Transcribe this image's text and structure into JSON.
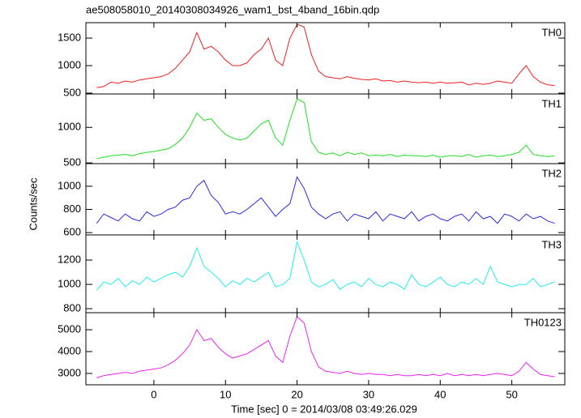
{
  "chart_data": {
    "type": "line",
    "title": "ae508058010_20140308034926_wam1_bst_4band_16bin.qdp",
    "xlabel": "Time [sec] 0 = 2014/03/08 03:49:26.029",
    "ylabel": "Counts/sec",
    "x": [
      -8,
      -7,
      -6,
      -5,
      -4,
      -3,
      -2,
      -1,
      0,
      1,
      2,
      3,
      4,
      5,
      6,
      7,
      8,
      9,
      10,
      11,
      12,
      13,
      14,
      15,
      16,
      17,
      18,
      19,
      20,
      21,
      22,
      23,
      24,
      25,
      26,
      27,
      28,
      29,
      30,
      31,
      32,
      33,
      34,
      35,
      36,
      37,
      38,
      39,
      40,
      41,
      42,
      43,
      44,
      45,
      46,
      47,
      48,
      49,
      50,
      51,
      52,
      53,
      54,
      55,
      56
    ],
    "xlim": [
      -9.5,
      57.4
    ],
    "xticks": [
      0,
      10,
      20,
      30,
      40,
      50
    ],
    "series": [
      {
        "name": "TH0",
        "color": "#ee2020",
        "ylim": [
          485,
          1780
        ],
        "yticks": [
          500,
          1000,
          1500
        ],
        "values": [
          600,
          620,
          700,
          680,
          720,
          700,
          740,
          760,
          780,
          800,
          850,
          950,
          1100,
          1250,
          1600,
          1300,
          1350,
          1250,
          1100,
          1000,
          1000,
          1050,
          1200,
          1300,
          1500,
          1100,
          1000,
          1500,
          1750,
          1700,
          1200,
          900,
          800,
          780,
          760,
          800,
          770,
          750,
          740,
          760,
          720,
          730,
          700,
          720,
          700,
          690,
          700,
          680,
          700,
          680,
          690,
          700,
          650,
          680,
          660,
          680,
          720,
          700,
          680,
          850,
          1000,
          800,
          700,
          650,
          640
        ]
      },
      {
        "name": "TH1",
        "color": "#22dd22",
        "ylim": [
          490,
          1470
        ],
        "yticks": [
          500,
          1000
        ],
        "values": [
          560,
          580,
          600,
          610,
          620,
          600,
          630,
          650,
          660,
          680,
          700,
          760,
          850,
          1000,
          1200,
          1100,
          1120,
          1000,
          900,
          850,
          820,
          850,
          950,
          1050,
          1100,
          850,
          750,
          1100,
          1400,
          1350,
          800,
          650,
          620,
          640,
          600,
          650,
          620,
          640,
          600,
          610,
          600,
          620,
          590,
          610,
          600,
          600,
          590,
          610,
          580,
          600,
          600,
          590,
          620,
          580,
          600,
          610,
          590,
          600,
          620,
          650,
          750,
          620,
          600,
          590,
          600
        ]
      },
      {
        "name": "TH2",
        "color": "#2a2add",
        "ylim": [
          580,
          1195
        ],
        "yticks": [
          600,
          800,
          1000
        ],
        "values": [
          680,
          760,
          730,
          700,
          760,
          720,
          700,
          780,
          740,
          760,
          800,
          820,
          880,
          900,
          1000,
          1050,
          920,
          860,
          760,
          780,
          760,
          800,
          850,
          900,
          820,
          740,
          800,
          850,
          1080,
          980,
          820,
          760,
          720,
          760,
          780,
          700,
          760,
          740,
          720,
          780,
          700,
          760,
          740,
          720,
          780,
          700,
          740,
          760,
          720,
          700,
          740,
          760,
          700,
          780,
          720,
          740,
          680,
          760,
          740,
          700,
          760,
          720,
          740,
          700,
          680
        ]
      },
      {
        "name": "TH3",
        "color": "#22eeee",
        "ylim": [
          767,
          1407
        ],
        "yticks": [
          800,
          1000,
          1200
        ],
        "values": [
          950,
          1020,
          1000,
          1050,
          980,
          1030,
          1000,
          1060,
          1020,
          1050,
          1080,
          1100,
          1060,
          1150,
          1300,
          1150,
          1100,
          1050,
          980,
          1030,
          1000,
          1050,
          1020,
          1060,
          1100,
          980,
          1000,
          1050,
          1350,
          1200,
          1020,
          980,
          1000,
          1040,
          960,
          1000,
          1020,
          980,
          1050,
          1000,
          980,
          1020,
          1000,
          960,
          1080,
          1000,
          980,
          1020,
          1060,
          1000,
          980,
          1020,
          1000,
          1050,
          1000,
          1150,
          1020,
          1000,
          980,
          1000,
          1000,
          1050,
          980,
          1000,
          1020
        ]
      },
      {
        "name": "TH0123",
        "color": "#ee22ee",
        "ylim": [
          2480,
          5780
        ],
        "yticks": [
          3000,
          4000,
          5000
        ],
        "values": [
          2800,
          2900,
          2950,
          3000,
          3050,
          3000,
          3100,
          3150,
          3200,
          3250,
          3400,
          3600,
          3900,
          4300,
          5000,
          4500,
          4600,
          4200,
          3900,
          3700,
          3800,
          3900,
          4100,
          4300,
          4500,
          3800,
          3500,
          4700,
          5600,
          5300,
          4000,
          3300,
          3100,
          3050,
          3000,
          3100,
          3000,
          2950,
          3000,
          2950,
          2950,
          2900,
          2950,
          2900,
          2900,
          2950,
          2900,
          2950,
          2900,
          3000,
          2900,
          2950,
          2900,
          2950,
          2900,
          2950,
          3000,
          2950,
          2900,
          3100,
          3500,
          3200,
          2950,
          2900,
          2850
        ]
      }
    ]
  }
}
